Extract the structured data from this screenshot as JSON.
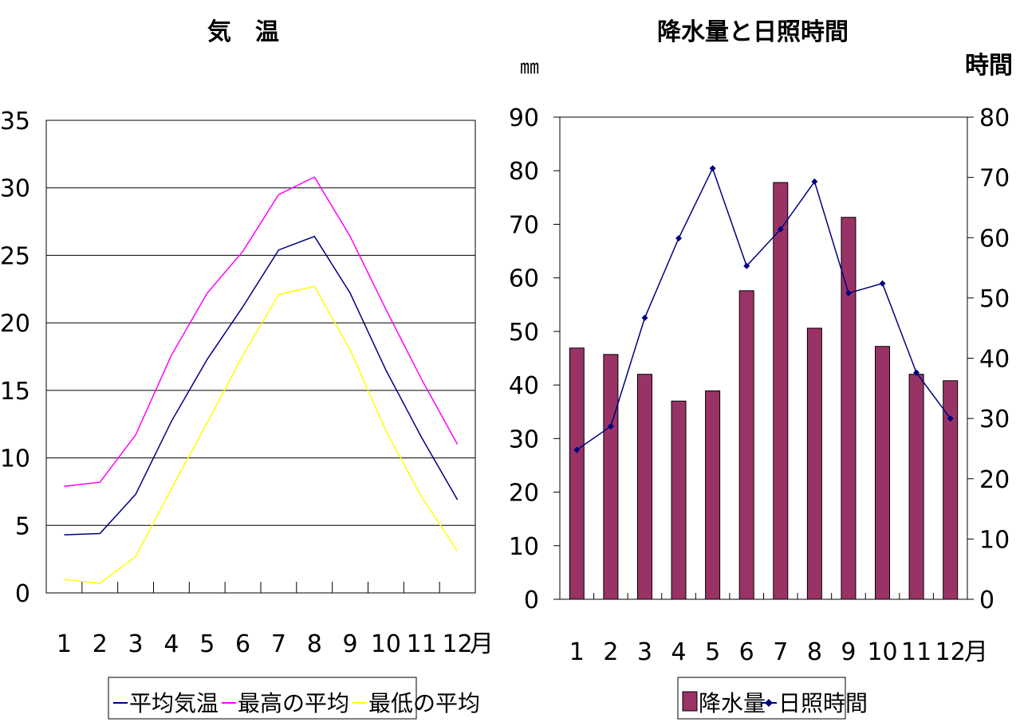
{
  "chart_data": [
    {
      "type": "line",
      "title": "気　温",
      "categories": [
        "1",
        "2",
        "3",
        "4",
        "5",
        "6",
        "7",
        "8",
        "9",
        "10",
        "11",
        "12"
      ],
      "x_unit": "月",
      "ylim": [
        0,
        35
      ],
      "y_ticks": [
        "0",
        "5",
        "10",
        "15",
        "20",
        "25",
        "30",
        "35"
      ],
      "grid": true,
      "legend_position": "bottom",
      "series": [
        {
          "name": "平均気温",
          "color": "#000080",
          "values": [
            4.3,
            4.4,
            7.3,
            12.7,
            17.3,
            21.2,
            25.4,
            26.4,
            22.2,
            16.5,
            11.5,
            6.9
          ]
        },
        {
          "name": "最高の平均",
          "color": "#ff00ff",
          "values": [
            7.9,
            8.2,
            11.7,
            17.6,
            22.2,
            25.3,
            29.5,
            30.8,
            26.4,
            21.0,
            15.8,
            11.0
          ]
        },
        {
          "name": "最低の平均",
          "color": "#ffff00",
          "values": [
            1.0,
            0.7,
            2.7,
            7.7,
            12.6,
            17.6,
            22.1,
            22.7,
            18.0,
            12.0,
            7.1,
            3.1
          ]
        }
      ]
    },
    {
      "type": "bar+line",
      "title": "降水量と日照時間",
      "categories": [
        "1",
        "2",
        "3",
        "4",
        "5",
        "6",
        "7",
        "8",
        "9",
        "10",
        "11",
        "12"
      ],
      "x_unit": "月",
      "left_axis": {
        "label": "㎜",
        "ylim": [
          0,
          90
        ],
        "ticks": [
          "0",
          "10",
          "20",
          "30",
          "40",
          "50",
          "60",
          "70",
          "80",
          "90"
        ]
      },
      "right_axis": {
        "label": "時間",
        "ylim": [
          0,
          80
        ],
        "ticks": [
          "0",
          "10",
          "20",
          "30",
          "40",
          "50",
          "60",
          "70",
          "80"
        ]
      },
      "grid": false,
      "legend_position": "bottom",
      "series": [
        {
          "name": "降水量",
          "type": "bar",
          "axis": "left",
          "color": "#993366",
          "values": [
            46.9,
            45.7,
            42.0,
            37.0,
            38.9,
            57.6,
            77.8,
            50.6,
            71.3,
            47.2,
            42.0,
            40.8
          ]
        },
        {
          "name": "日照時間",
          "type": "line",
          "axis": "right",
          "color": "#000080",
          "values": [
            24.8,
            28.7,
            46.7,
            59.9,
            71.5,
            55.3,
            61.4,
            69.3,
            50.8,
            52.4,
            37.6,
            30.0
          ]
        }
      ]
    }
  ]
}
